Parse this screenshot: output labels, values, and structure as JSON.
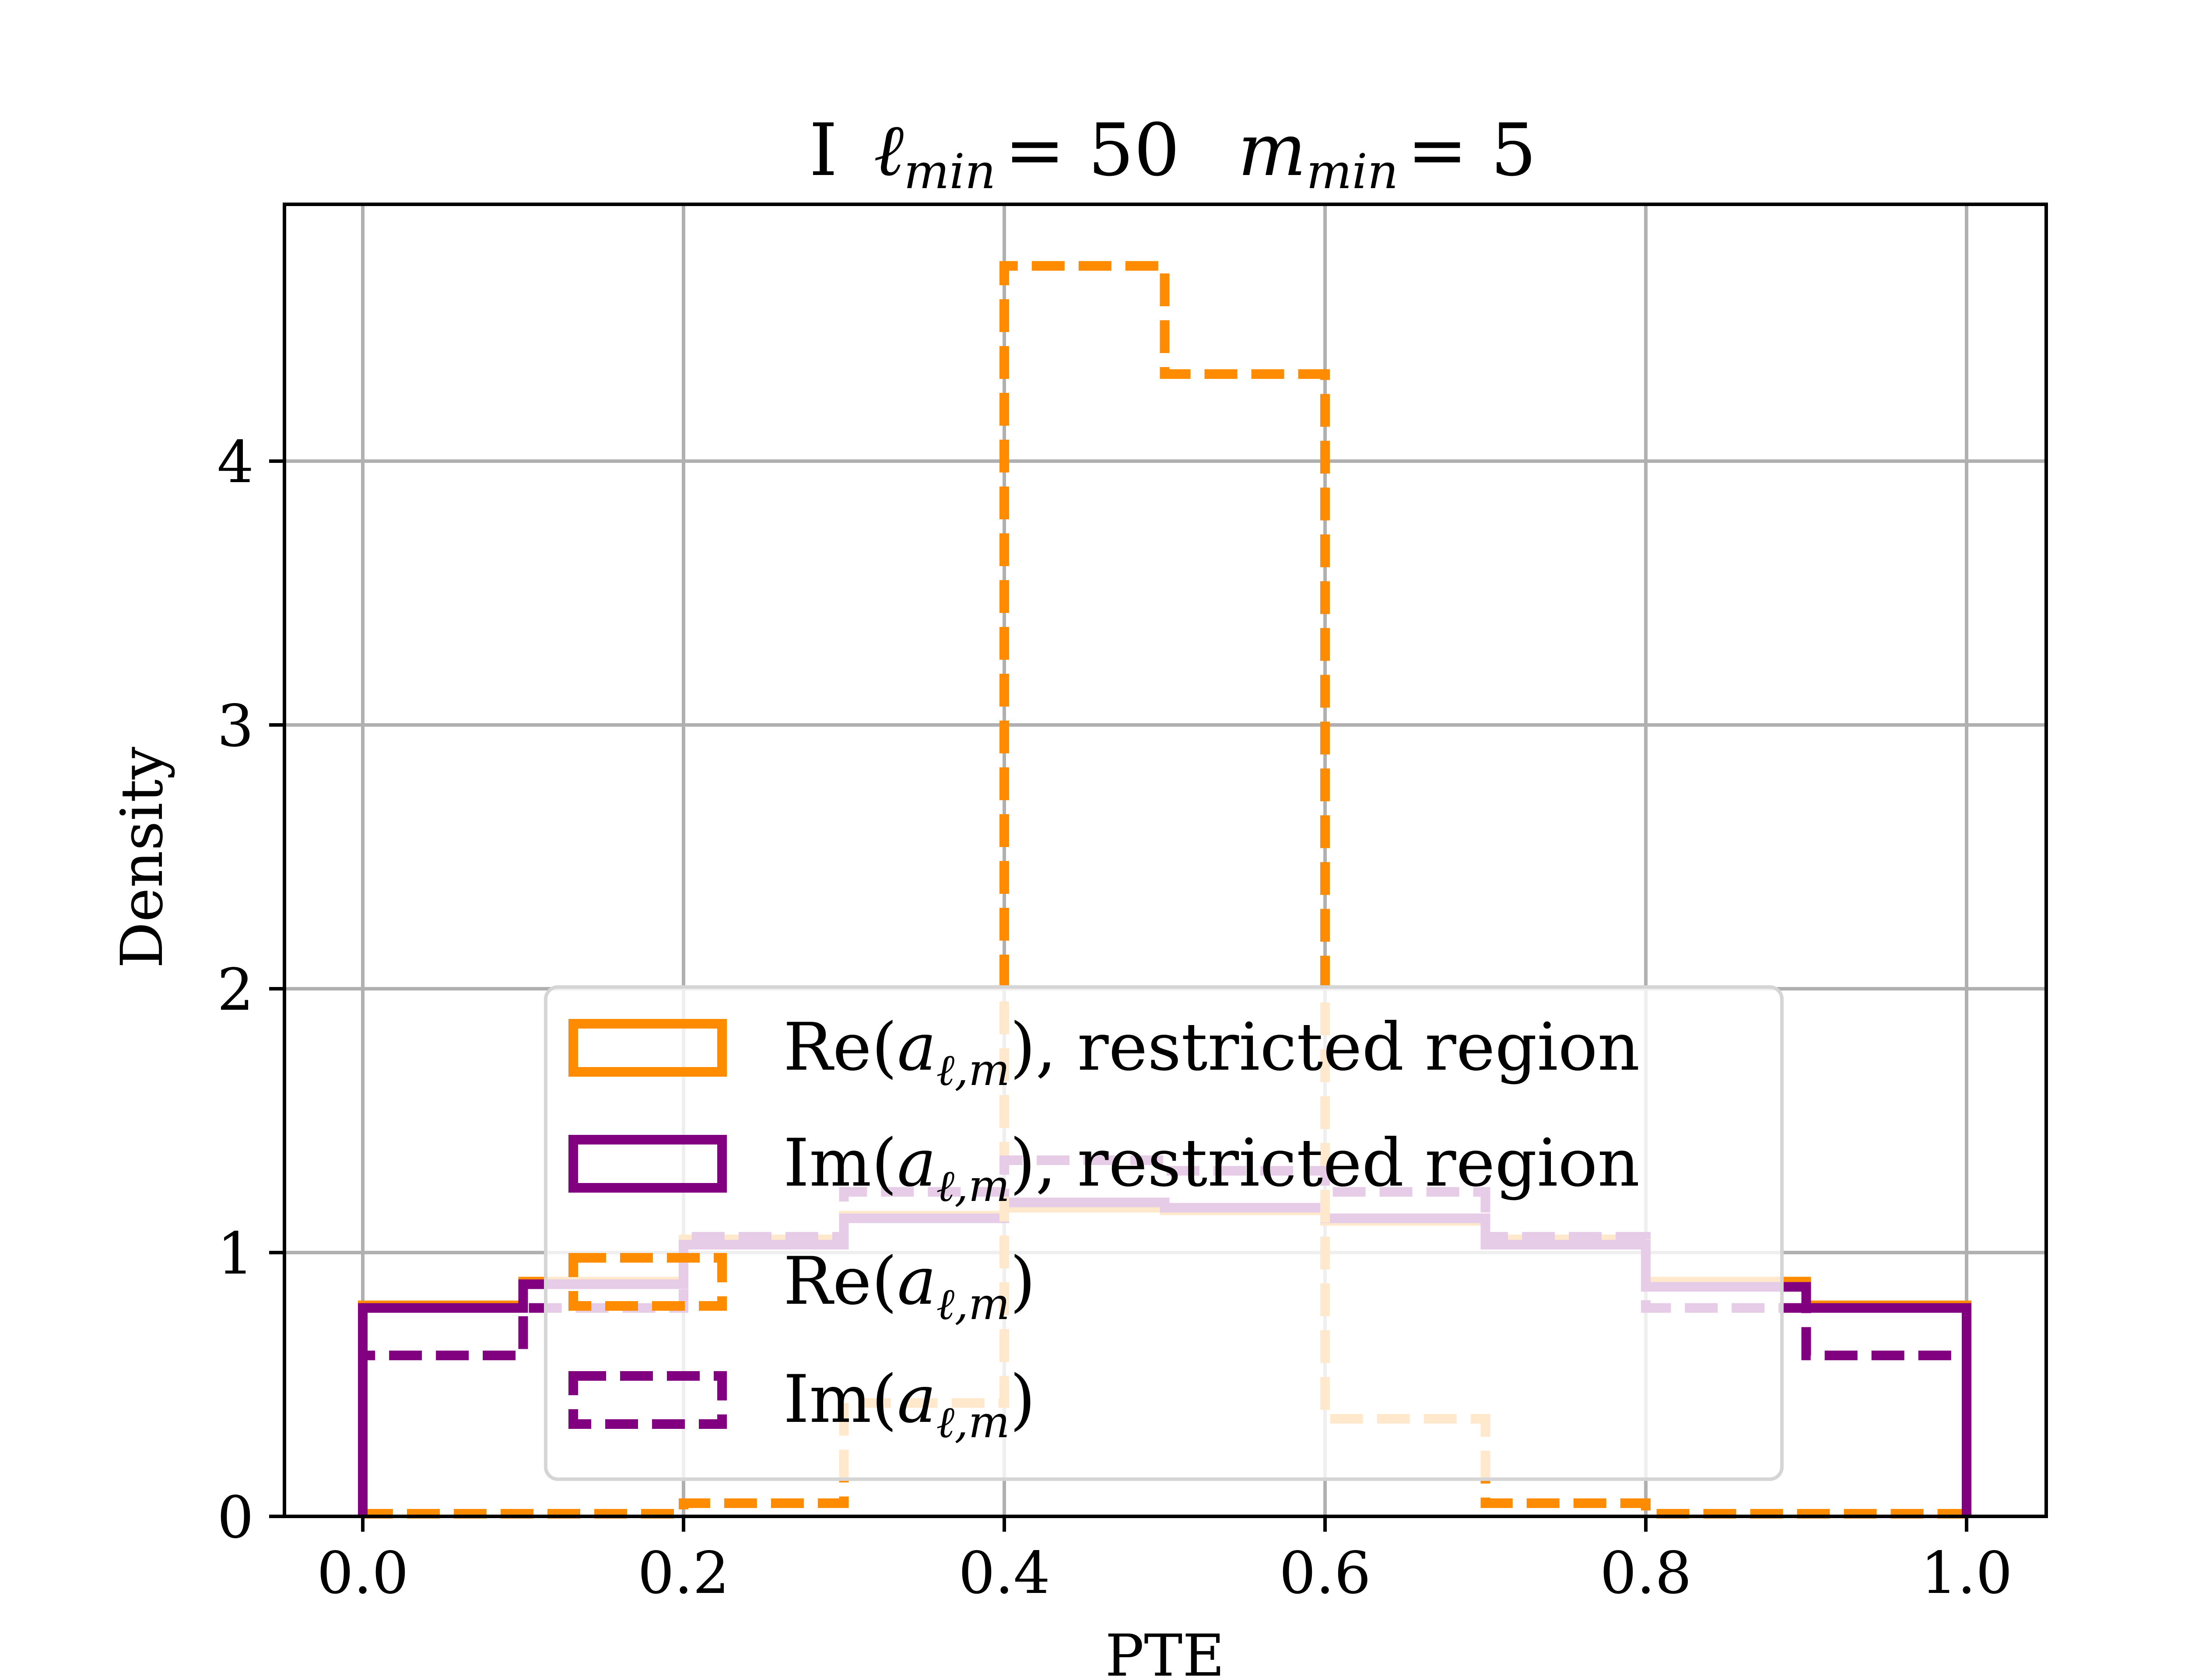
{
  "chart_data": {
    "type": "histogram-step",
    "title": "I ℓ_min = 50  m_min = 5",
    "title_parts": {
      "prefix": "I",
      "l_symbol": "ℓ",
      "l_sub": "min",
      "l_value": "= 50",
      "m_symbol": "m",
      "m_sub": "min",
      "m_value": "= 5"
    },
    "xlabel": "PTE",
    "ylabel": "Density",
    "xlim": [
      -0.05,
      1.05
    ],
    "ylim": [
      0,
      4.97
    ],
    "xticks": [
      0.0,
      0.2,
      0.4,
      0.6,
      0.8,
      1.0
    ],
    "xtick_labels": [
      "0.0",
      "0.2",
      "0.4",
      "0.6",
      "0.8",
      "1.0"
    ],
    "yticks": [
      0,
      1,
      2,
      3,
      4
    ],
    "ytick_labels": [
      "0",
      "1",
      "2",
      "3",
      "4"
    ],
    "grid": true,
    "bin_edges": [
      0.0,
      0.1,
      0.2,
      0.3,
      0.4,
      0.5,
      0.6,
      0.7,
      0.8,
      0.9,
      1.0
    ],
    "legend_position": "lower-center",
    "series": [
      {
        "name": "Re(a_{ℓ,m}), restricted region",
        "legend_main": "Re(",
        "color": "#ff8c00",
        "style": "solid",
        "values": [
          0.8,
          0.89,
          1.05,
          1.14,
          1.17,
          1.16,
          1.12,
          1.05,
          0.89,
          0.8
        ]
      },
      {
        "name": "Im(a_{ℓ,m}), restricted region",
        "legend_main": "Im(",
        "color": "#800080",
        "style": "solid",
        "values": [
          0.79,
          0.88,
          1.03,
          1.13,
          1.19,
          1.17,
          1.13,
          1.03,
          0.87,
          0.79
        ]
      },
      {
        "name": "Re(a_{ℓ,m})",
        "legend_main": "Re(",
        "color": "#ff8c00",
        "style": "dashed",
        "values": [
          0.01,
          0.01,
          0.05,
          0.43,
          4.74,
          4.33,
          0.37,
          0.05,
          0.01,
          0.01
        ]
      },
      {
        "name": "Im(a_{ℓ,m})",
        "legend_main": "Im(",
        "color": "#800080",
        "style": "dashed",
        "values": [
          0.61,
          0.79,
          1.06,
          1.23,
          1.35,
          1.31,
          1.23,
          1.06,
          0.79,
          0.61
        ]
      }
    ],
    "legend": [
      {
        "main": "Re(",
        "sym": "a",
        "sub": "ℓ,m",
        "close": ")",
        "suffix": ", restricted region"
      },
      {
        "main": "Im(",
        "sym": "a",
        "sub": "ℓ,m",
        "close": ")",
        "suffix": ", restricted region"
      },
      {
        "main": "Re(",
        "sym": "a",
        "sub": "ℓ,m",
        "close": ")",
        "suffix": ""
      },
      {
        "main": "Im(",
        "sym": "a",
        "sub": "ℓ,m",
        "close": ")",
        "suffix": ""
      }
    ],
    "faded_under_legend": {
      "purple_fade": "#e5cce5",
      "orange_fade": "#ffe8cc"
    }
  }
}
